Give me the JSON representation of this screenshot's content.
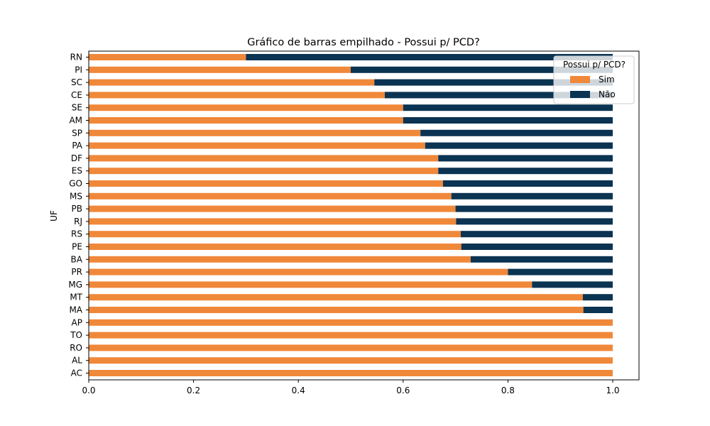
{
  "chart_data": {
    "type": "bar",
    "orientation": "horizontal",
    "stacked": true,
    "title": "Gráfico de barras empilhado - Possui p/ PCD?",
    "xlabel": "",
    "ylabel": "UF",
    "xlim": [
      0,
      1.05
    ],
    "xticks": [
      "0.0",
      "0.2",
      "0.4",
      "0.6",
      "0.8",
      "1.0"
    ],
    "categories": [
      "AC",
      "AL",
      "RO",
      "TO",
      "AP",
      "MA",
      "MT",
      "MG",
      "PR",
      "BA",
      "PE",
      "RS",
      "RJ",
      "PB",
      "MS",
      "GO",
      "ES",
      "DF",
      "PA",
      "SP",
      "AM",
      "SE",
      "CE",
      "SC",
      "PI",
      "RN"
    ],
    "legend": {
      "title": "Possui p/ PCD?",
      "position": "upper right"
    },
    "series": [
      {
        "name": "Sim",
        "color": "#f0883a",
        "values": [
          1.0,
          1.0,
          1.0,
          1.0,
          1.0,
          0.944,
          0.943,
          0.846,
          0.8,
          0.729,
          0.711,
          0.71,
          0.701,
          0.7,
          0.692,
          0.676,
          0.667,
          0.667,
          0.642,
          0.633,
          0.6,
          0.6,
          0.565,
          0.545,
          0.5,
          0.3
        ]
      },
      {
        "name": "Não",
        "color": "#0b3352",
        "values": [
          0.0,
          0.0,
          0.0,
          0.0,
          0.0,
          0.056,
          0.057,
          0.154,
          0.2,
          0.271,
          0.289,
          0.29,
          0.299,
          0.3,
          0.308,
          0.324,
          0.333,
          0.333,
          0.358,
          0.367,
          0.4,
          0.4,
          0.435,
          0.455,
          0.5,
          0.7
        ]
      }
    ],
    "grid": false
  }
}
